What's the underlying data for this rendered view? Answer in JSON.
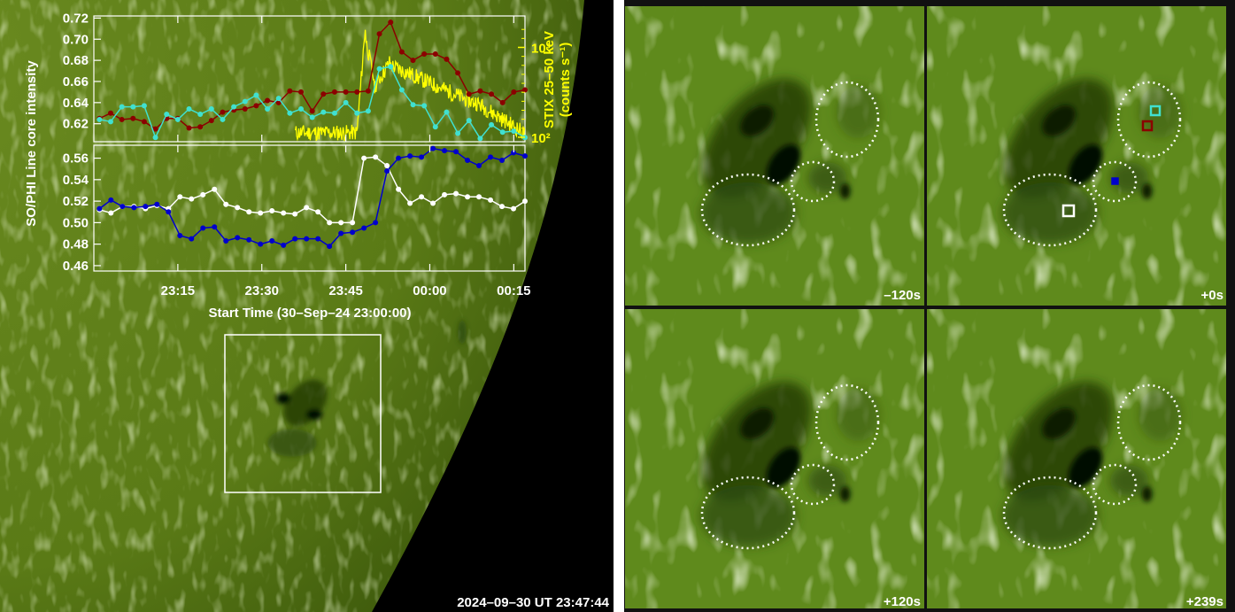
{
  "timestamp": "2024–09–30 UT 23:47:44",
  "plot": {
    "ylabel_left": "SO/PHI Line core intensity",
    "ylabel_right_1": "STIX 25–50 keV",
    "ylabel_right_2": "(counts s⁻¹)",
    "xlabel": "Start Time (30–Sep–24 23:00:00)",
    "xticks": [
      "23:15",
      "23:30",
      "23:45",
      "00:00",
      "00:15"
    ],
    "top_yticks": [
      "0.72",
      "0.70",
      "0.68",
      "0.66",
      "0.64",
      "0.62"
    ],
    "bottom_yticks": [
      "0.56",
      "0.54",
      "0.52",
      "0.50",
      "0.48",
      "0.46"
    ],
    "right_yticks": [
      "10³",
      "10²"
    ]
  },
  "panels": [
    {
      "label": "–120s"
    },
    {
      "label": "+0s"
    },
    {
      "label": "+120s"
    },
    {
      "label": "+239s"
    }
  ],
  "colors": {
    "disk": "#5c7c18",
    "panel": "#5f8a1c",
    "stix": "#ffff00",
    "darkred": "#8b0000",
    "cyan": "#40e0d0",
    "blue": "#0000cd",
    "white": "#ffffff"
  }
}
